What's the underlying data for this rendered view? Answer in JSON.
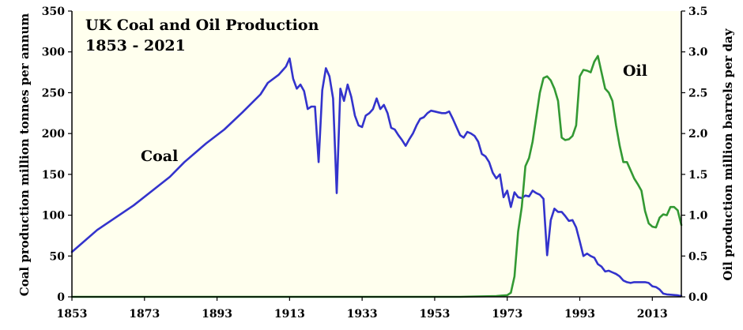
{
  "chart_data": {
    "type": "line",
    "title": "UK Coal and Oil Production",
    "subtitle": "1853 - 2021",
    "xlabel": "",
    "ylabel_left": "Coal production million tonnes per annum",
    "ylabel_right": "Oil production million barrels per day",
    "xlim": [
      1853,
      2021
    ],
    "ylim_left": [
      0,
      350
    ],
    "ylim_right": [
      0,
      3.5
    ],
    "x_ticks": [
      "1853",
      "1873",
      "1893",
      "1913",
      "1933",
      "1953",
      "1973",
      "1993",
      "2013"
    ],
    "y_ticks_left": [
      "0",
      "50",
      "100",
      "150",
      "200",
      "250",
      "300",
      "350"
    ],
    "y_ticks_right": [
      "0.0",
      "0.5",
      "1.0",
      "1.5",
      "2.0",
      "2.5",
      "3.0",
      "3.5"
    ],
    "grid": false,
    "background_color": "#ffffee",
    "series": [
      {
        "name": "Coal",
        "axis": "left",
        "color": "#3333cc",
        "points": [
          [
            1853,
            55
          ],
          [
            1860,
            82
          ],
          [
            1870,
            112
          ],
          [
            1880,
            147
          ],
          [
            1884,
            165
          ],
          [
            1890,
            188
          ],
          [
            1895,
            205
          ],
          [
            1900,
            226
          ],
          [
            1905,
            248
          ],
          [
            1907,
            262
          ],
          [
            1910,
            272
          ],
          [
            1911,
            277
          ],
          [
            1912,
            282
          ],
          [
            1913,
            292
          ],
          [
            1914,
            267
          ],
          [
            1915,
            255
          ],
          [
            1916,
            260
          ],
          [
            1917,
            252
          ],
          [
            1918,
            230
          ],
          [
            1919,
            233
          ],
          [
            1920,
            233
          ],
          [
            1921,
            165
          ],
          [
            1922,
            253
          ],
          [
            1923,
            280
          ],
          [
            1924,
            270
          ],
          [
            1925,
            243
          ],
          [
            1926,
            127
          ],
          [
            1927,
            255
          ],
          [
            1928,
            240
          ],
          [
            1929,
            260
          ],
          [
            1930,
            245
          ],
          [
            1931,
            222
          ],
          [
            1932,
            210
          ],
          [
            1933,
            208
          ],
          [
            1934,
            222
          ],
          [
            1935,
            225
          ],
          [
            1936,
            230
          ],
          [
            1937,
            243
          ],
          [
            1938,
            230
          ],
          [
            1939,
            235
          ],
          [
            1940,
            225
          ],
          [
            1941,
            207
          ],
          [
            1942,
            205
          ],
          [
            1943,
            198
          ],
          [
            1944,
            192
          ],
          [
            1945,
            185
          ],
          [
            1946,
            193
          ],
          [
            1947,
            200
          ],
          [
            1948,
            210
          ],
          [
            1949,
            218
          ],
          [
            1950,
            220
          ],
          [
            1951,
            225
          ],
          [
            1952,
            228
          ],
          [
            1953,
            227
          ],
          [
            1954,
            226
          ],
          [
            1955,
            225
          ],
          [
            1956,
            225
          ],
          [
            1957,
            227
          ],
          [
            1958,
            218
          ],
          [
            1959,
            208
          ],
          [
            1960,
            198
          ],
          [
            1961,
            195
          ],
          [
            1962,
            202
          ],
          [
            1963,
            200
          ],
          [
            1964,
            197
          ],
          [
            1965,
            190
          ],
          [
            1966,
            175
          ],
          [
            1967,
            172
          ],
          [
            1968,
            165
          ],
          [
            1969,
            152
          ],
          [
            1970,
            145
          ],
          [
            1971,
            150
          ],
          [
            1972,
            122
          ],
          [
            1973,
            130
          ],
          [
            1974,
            110
          ],
          [
            1975,
            128
          ],
          [
            1976,
            122
          ],
          [
            1977,
            121
          ],
          [
            1978,
            124
          ],
          [
            1979,
            123
          ],
          [
            1980,
            130
          ],
          [
            1981,
            127
          ],
          [
            1982,
            125
          ],
          [
            1983,
            120
          ],
          [
            1984,
            51
          ],
          [
            1985,
            94
          ],
          [
            1986,
            108
          ],
          [
            1987,
            104
          ],
          [
            1988,
            104
          ],
          [
            1989,
            99
          ],
          [
            1990,
            93
          ],
          [
            1991,
            94
          ],
          [
            1992,
            85
          ],
          [
            1993,
            68
          ],
          [
            1994,
            50
          ],
          [
            1995,
            53
          ],
          [
            1996,
            50
          ],
          [
            1997,
            48
          ],
          [
            1998,
            40
          ],
          [
            1999,
            37
          ],
          [
            2000,
            31
          ],
          [
            2001,
            32
          ],
          [
            2002,
            30
          ],
          [
            2003,
            28
          ],
          [
            2004,
            25
          ],
          [
            2005,
            20
          ],
          [
            2006,
            18
          ],
          [
            2007,
            17
          ],
          [
            2008,
            18
          ],
          [
            2009,
            18
          ],
          [
            2010,
            18
          ],
          [
            2011,
            18
          ],
          [
            2012,
            17
          ],
          [
            2013,
            13
          ],
          [
            2014,
            12
          ],
          [
            2015,
            9
          ],
          [
            2016,
            4
          ],
          [
            2017,
            3
          ],
          [
            2018,
            2.6
          ],
          [
            2019,
            2.2
          ],
          [
            2020,
            1.8
          ],
          [
            2021,
            1
          ]
        ]
      },
      {
        "name": "Oil",
        "axis": "right",
        "color": "#339933",
        "points": [
          [
            1853,
            0
          ],
          [
            1960,
            0
          ],
          [
            1970,
            0.01
          ],
          [
            1973,
            0.02
          ],
          [
            1974,
            0.05
          ],
          [
            1975,
            0.25
          ],
          [
            1976,
            0.8
          ],
          [
            1977,
            1.1
          ],
          [
            1978,
            1.6
          ],
          [
            1979,
            1.7
          ],
          [
            1980,
            1.9
          ],
          [
            1981,
            2.2
          ],
          [
            1982,
            2.5
          ],
          [
            1983,
            2.68
          ],
          [
            1984,
            2.7
          ],
          [
            1985,
            2.65
          ],
          [
            1986,
            2.55
          ],
          [
            1987,
            2.4
          ],
          [
            1988,
            1.95
          ],
          [
            1989,
            1.92
          ],
          [
            1990,
            1.93
          ],
          [
            1991,
            1.97
          ],
          [
            1992,
            2.1
          ],
          [
            1993,
            2.7
          ],
          [
            1994,
            2.78
          ],
          [
            1995,
            2.77
          ],
          [
            1996,
            2.75
          ],
          [
            1997,
            2.88
          ],
          [
            1998,
            2.95
          ],
          [
            1999,
            2.75
          ],
          [
            2000,
            2.55
          ],
          [
            2001,
            2.5
          ],
          [
            2002,
            2.4
          ],
          [
            2003,
            2.1
          ],
          [
            2004,
            1.85
          ],
          [
            2005,
            1.65
          ],
          [
            2006,
            1.65
          ],
          [
            2007,
            1.55
          ],
          [
            2008,
            1.45
          ],
          [
            2009,
            1.38
          ],
          [
            2010,
            1.3
          ],
          [
            2011,
            1.05
          ],
          [
            2012,
            0.9
          ],
          [
            2013,
            0.86
          ],
          [
            2014,
            0.85
          ],
          [
            2015,
            0.97
          ],
          [
            2016,
            1.01
          ],
          [
            2017,
            1.0
          ],
          [
            2018,
            1.1
          ],
          [
            2019,
            1.1
          ],
          [
            2020,
            1.06
          ],
          [
            2021,
            0.88
          ]
        ]
      }
    ]
  }
}
